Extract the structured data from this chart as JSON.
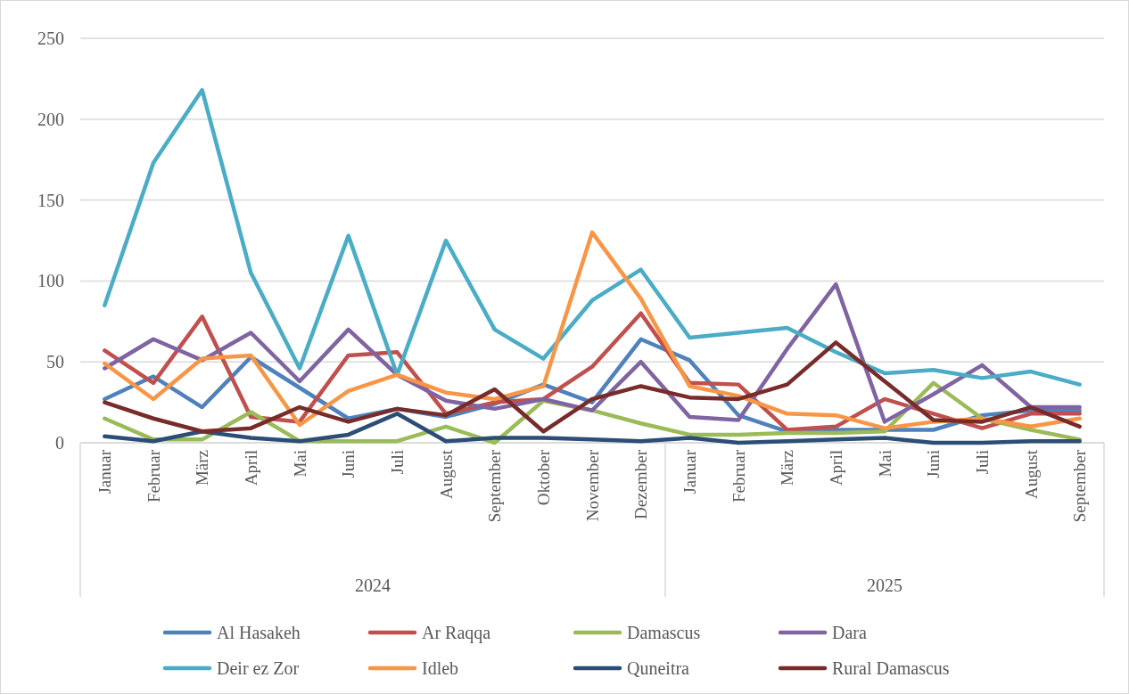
{
  "chart_data": {
    "type": "line",
    "categories": [
      "Januar",
      "Februar",
      "März",
      "April",
      "Mai",
      "Juni",
      "Juli",
      "August",
      "September",
      "Oktober",
      "November",
      "Dezember",
      "Januar",
      "Februar",
      "März",
      "April",
      "Mai",
      "Juni",
      "Juli",
      "August",
      "September"
    ],
    "annotations": [
      "2024",
      "2025"
    ],
    "ylim": [
      0,
      250
    ],
    "yticks": [
      0,
      50,
      100,
      150,
      200,
      250
    ],
    "grid": "y",
    "legend": "bottom",
    "line_style": "solid",
    "marker": "none",
    "series": [
      {
        "name": "Al Hasakeh",
        "color": "#4f81bd",
        "values": [
          27,
          41,
          22,
          53,
          34,
          15,
          21,
          16,
          24,
          36,
          25,
          64,
          51,
          17,
          7,
          8,
          8,
          8,
          17,
          20,
          20
        ]
      },
      {
        "name": "Ar Raqqa",
        "color": "#c0504d",
        "values": [
          57,
          37,
          78,
          16,
          13,
          54,
          56,
          18,
          25,
          27,
          47,
          80,
          37,
          36,
          8,
          10,
          27,
          18,
          9,
          18,
          18
        ]
      },
      {
        "name": "Damascus",
        "color": "#9bbb59",
        "values": [
          15,
          2,
          2,
          19,
          1,
          1,
          1,
          10,
          0,
          26,
          20,
          12,
          5,
          5,
          6,
          6,
          7,
          37,
          15,
          8,
          2
        ]
      },
      {
        "name": "Dara",
        "color": "#8064a2",
        "values": [
          46,
          64,
          51,
          68,
          38,
          70,
          42,
          26,
          21,
          27,
          20,
          50,
          16,
          14,
          58,
          98,
          13,
          30,
          48,
          22,
          22
        ]
      },
      {
        "name": "Deir ez Zor",
        "color": "#4bacc6",
        "values": [
          85,
          173,
          218,
          105,
          46,
          128,
          42,
          125,
          70,
          52,
          88,
          107,
          65,
          68,
          71,
          56,
          43,
          45,
          40,
          44,
          36
        ]
      },
      {
        "name": "Idleb",
        "color": "#f79646",
        "values": [
          49,
          27,
          52,
          54,
          11,
          32,
          42,
          31,
          27,
          35,
          130,
          89,
          35,
          29,
          18,
          17,
          9,
          13,
          15,
          10,
          15
        ]
      },
      {
        "name": "Quneitra",
        "color": "#2c4d75",
        "values": [
          4,
          1,
          7,
          3,
          1,
          5,
          18,
          1,
          3,
          3,
          2,
          1,
          3,
          0,
          1,
          2,
          3,
          0,
          0,
          1,
          1
        ]
      },
      {
        "name": "Rural Damascus",
        "color": "#772c2a",
        "values": [
          25,
          15,
          7,
          9,
          22,
          13,
          21,
          17,
          33,
          7,
          27,
          35,
          28,
          27,
          36,
          62,
          38,
          14,
          13,
          22,
          10
        ]
      }
    ]
  }
}
